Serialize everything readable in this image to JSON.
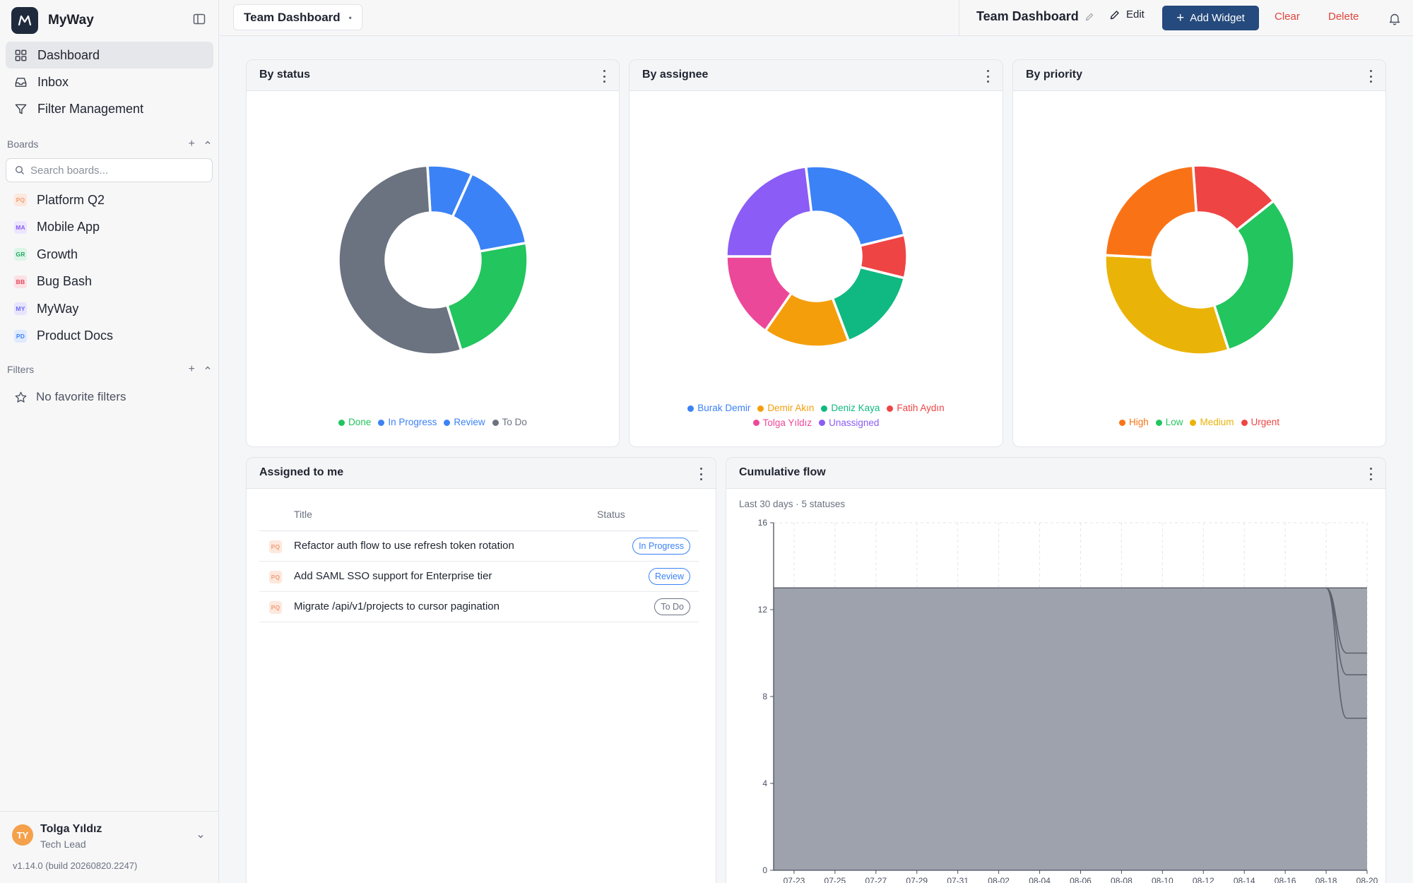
{
  "app": {
    "name": "MyWay"
  },
  "nav": [
    {
      "label": "Dashboard",
      "icon": "grid-icon",
      "active": true
    },
    {
      "label": "Inbox",
      "icon": "inbox-icon",
      "active": false
    },
    {
      "label": "Filter Management",
      "icon": "filter-icon",
      "active": false
    }
  ],
  "boards_section": {
    "label": "Boards",
    "search_placeholder": "Search boards..."
  },
  "boards": [
    {
      "abbr": "PQ",
      "label": "Platform Q2",
      "color": "#f0a07a",
      "bg": "#fde8dd"
    },
    {
      "abbr": "MA",
      "label": "Mobile App",
      "color": "#8b5cf6",
      "bg": "#ede5ff"
    },
    {
      "abbr": "GR",
      "label": "Growth",
      "color": "#22a867",
      "bg": "#dcf5e7"
    },
    {
      "abbr": "BB",
      "label": "Bug Bash",
      "color": "#e0445b",
      "bg": "#fde0e4"
    },
    {
      "abbr": "MY",
      "label": "MyWay",
      "color": "#6d6af0",
      "bg": "#e6e5fd"
    },
    {
      "abbr": "PD",
      "label": "Product Docs",
      "color": "#3b82f6",
      "bg": "#dfeafe"
    }
  ],
  "filters_section": {
    "label": "Filters",
    "empty_label": "No favorite filters"
  },
  "user": {
    "initials": "TY",
    "name": "Tolga Yıldız",
    "role": "Tech Lead"
  },
  "version": "v1.14.0 (build 20260820.2247)",
  "topbar": {
    "dashboard_select": "Team Dashboard",
    "title": "Team Dashboard",
    "edit_label": "Edit",
    "add_widget_label": "Add Widget",
    "clear_label": "Clear",
    "delete_label": "Delete"
  },
  "widgets": {
    "by_status": {
      "title": "By status",
      "slices": [
        {
          "label": "Done",
          "value": 3,
          "color": "#22c55e"
        },
        {
          "label": "In Progress",
          "value": 1,
          "color": "#3b82f6"
        },
        {
          "label": "Review",
          "value": 2,
          "color": "#3b82f6"
        },
        {
          "label": "To Do",
          "value": 7,
          "color": "#6b7280"
        }
      ],
      "draw_order": [
        "In Progress",
        "Review",
        "Done",
        "To Do"
      ]
    },
    "by_assignee": {
      "title": "By assignee",
      "slices": [
        {
          "label": "Burak Demir",
          "value": 3,
          "color": "#3b82f6"
        },
        {
          "label": "Demir Akın",
          "value": 2,
          "color": "#f59e0b"
        },
        {
          "label": "Deniz Kaya",
          "value": 2,
          "color": "#10b981"
        },
        {
          "label": "Fatih Aydın",
          "value": 1,
          "color": "#ef4444"
        },
        {
          "label": "Tolga Yıldız",
          "value": 2,
          "color": "#ec4899"
        },
        {
          "label": "Unassigned",
          "value": 3,
          "color": "#8b5cf6"
        }
      ],
      "draw_order": [
        "Burak Demir",
        "Fatih Aydın",
        "Deniz Kaya",
        "Demir Akın",
        "Tolga Yıldız",
        "Unassigned"
      ]
    },
    "by_priority": {
      "title": "By priority",
      "slices": [
        {
          "label": "High",
          "value": 3,
          "color": "#f97316"
        },
        {
          "label": "Low",
          "value": 4,
          "color": "#22c55e"
        },
        {
          "label": "Medium",
          "value": 4,
          "color": "#eab308"
        },
        {
          "label": "Urgent",
          "value": 2,
          "color": "#ef4444"
        }
      ],
      "draw_order": [
        "Urgent",
        "Low",
        "Medium",
        "High"
      ]
    },
    "assigned": {
      "title": "Assigned to me",
      "col_title": "Title",
      "col_status": "Status",
      "rows": [
        {
          "board": "PQ",
          "title": "Refactor auth flow to use refresh token rotation",
          "status": "In Progress",
          "status_color": "#3b82f6"
        },
        {
          "board": "PQ",
          "title": "Add SAML SSO support for Enterprise tier",
          "status": "Review",
          "status_color": "#3b82f6"
        },
        {
          "board": "PQ",
          "title": "Migrate /api/v1/projects to cursor pagination",
          "status": "To Do",
          "status_color": "#6b7280"
        }
      ]
    },
    "cumulative_flow": {
      "title": "Cumulative flow",
      "subtitle": "Last 30 days · 5 statuses"
    }
  },
  "chart_data": {
    "type": "area",
    "title": "Cumulative flow",
    "ylim": [
      0,
      16
    ],
    "yticks": [
      0,
      4,
      8,
      12,
      16
    ],
    "xticks": [
      "07-23",
      "07-25",
      "07-27",
      "07-29",
      "07-31",
      "08-02",
      "08-04",
      "08-06",
      "08-08",
      "08-10",
      "08-12",
      "08-14",
      "08-16",
      "08-18",
      "08-20"
    ],
    "x": [
      "07-22",
      "07-23",
      "07-24",
      "07-25",
      "07-26",
      "07-27",
      "07-28",
      "07-29",
      "07-30",
      "07-31",
      "08-01",
      "08-02",
      "08-03",
      "08-04",
      "08-05",
      "08-06",
      "08-07",
      "08-08",
      "08-09",
      "08-10",
      "08-11",
      "08-12",
      "08-13",
      "08-14",
      "08-15",
      "08-16",
      "08-17",
      "08-18",
      "08-19",
      "08-20"
    ],
    "series_totals": [
      [
        13,
        13,
        13,
        13,
        13,
        13,
        13,
        13,
        13,
        13,
        13,
        13,
        13,
        13,
        13,
        13,
        13,
        13,
        13,
        13,
        13,
        13,
        13,
        13,
        13,
        13,
        13,
        13,
        13,
        13
      ],
      [
        13,
        13,
        13,
        13,
        13,
        13,
        13,
        13,
        13,
        13,
        13,
        13,
        13,
        13,
        13,
        13,
        13,
        13,
        13,
        13,
        13,
        13,
        13,
        13,
        13,
        13,
        13,
        13,
        10,
        10
      ],
      [
        13,
        13,
        13,
        13,
        13,
        13,
        13,
        13,
        13,
        13,
        13,
        13,
        13,
        13,
        13,
        13,
        13,
        13,
        13,
        13,
        13,
        13,
        13,
        13,
        13,
        13,
        13,
        13,
        9,
        9
      ],
      [
        13,
        13,
        13,
        13,
        13,
        13,
        13,
        13,
        13,
        13,
        13,
        13,
        13,
        13,
        13,
        13,
        13,
        13,
        13,
        13,
        13,
        13,
        13,
        13,
        13,
        13,
        13,
        13,
        7,
        7
      ]
    ],
    "grid": true,
    "fill_color": "#9ca0aa",
    "line_color": "#5b606b"
  }
}
